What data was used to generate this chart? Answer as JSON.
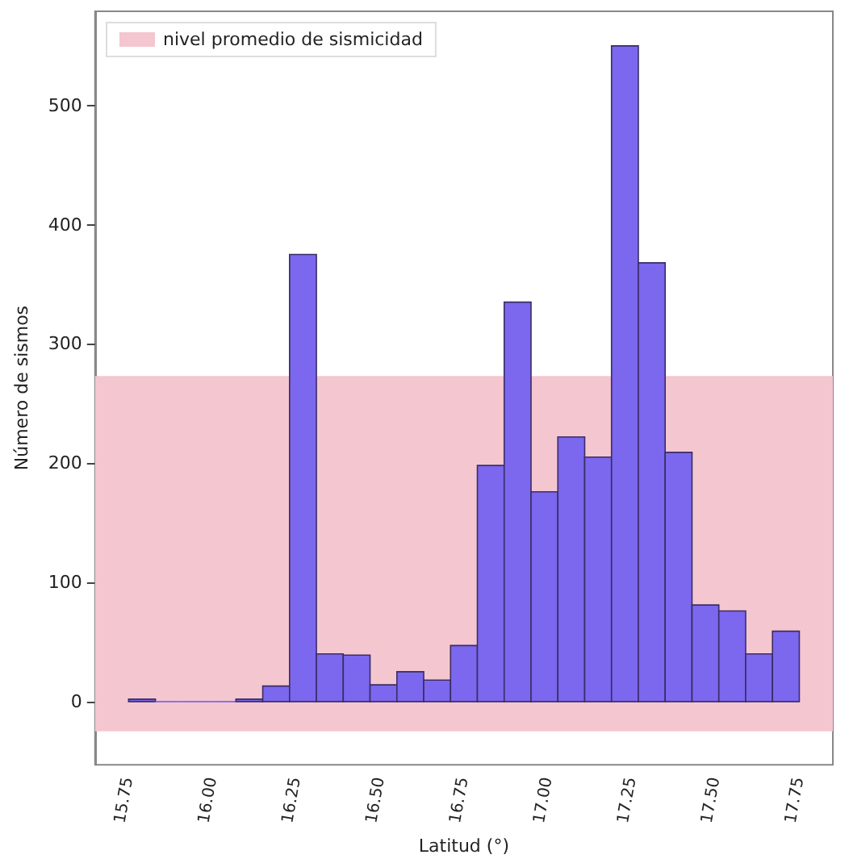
{
  "chart_data": {
    "type": "histogram",
    "xlabel": "Latitud (°)",
    "ylabel": "Número de sismos",
    "bins": [
      15.75,
      15.83,
      15.91,
      15.99,
      16.07,
      16.15,
      16.23,
      16.31,
      16.39,
      16.47,
      16.55,
      16.63,
      16.71,
      16.79,
      16.87,
      16.95,
      17.03,
      17.11,
      17.19,
      17.27,
      17.35,
      17.43,
      17.51,
      17.59,
      17.67,
      17.75
    ],
    "values": [
      2,
      0,
      0,
      0,
      2,
      13,
      375,
      40,
      39,
      14,
      25,
      18,
      47,
      198,
      335,
      176,
      222,
      205,
      550,
      368,
      209,
      81,
      76,
      40,
      59
    ],
    "color": "#7b68ee",
    "xlim": [
      15.65,
      17.85
    ],
    "ylim": [
      -53,
      579
    ],
    "xticks": [
      15.75,
      {
        "value": 16,
        "label": "16.00"
      },
      16.25,
      {
        "value": 16.5,
        "label": "16.50"
      },
      16.75,
      {
        "value": 17,
        "label": "17.00"
      },
      17.25,
      {
        "value": 17.5,
        "label": "17.50"
      },
      17.75
    ],
    "yticks": [
      0,
      100,
      200,
      300,
      400,
      500
    ],
    "bands": [
      {
        "axis": "y",
        "from": -25,
        "to": 273,
        "label": "nivel promedio de sismicidad",
        "color": "#f4c6d0"
      }
    ],
    "legend": "top left",
    "grid": false
  }
}
